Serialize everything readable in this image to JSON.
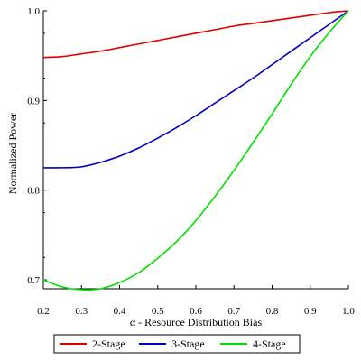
{
  "chart_data": {
    "type": "line",
    "title": "",
    "xlabel": "α - Resource Distribution Bias",
    "ylabel": "Normalized Power",
    "xlim": [
      0.2,
      1.0
    ],
    "ylim": [
      0.69,
      1.0
    ],
    "x_ticks": [
      "0.2",
      "0.3",
      "0.4",
      "0.5",
      "0.6",
      "0.7",
      "0.8",
      "0.9",
      "1.0"
    ],
    "y_ticks": [
      "0.7",
      "0.8",
      "0.9",
      "1.0"
    ],
    "grid": false,
    "legend_position": "bottom",
    "x": [
      0.2,
      0.25,
      0.3,
      0.35,
      0.4,
      0.45,
      0.5,
      0.55,
      0.6,
      0.65,
      0.7,
      0.75,
      0.8,
      0.85,
      0.9,
      0.95,
      1.0
    ],
    "series": [
      {
        "name": "2-Stage",
        "color": "#e00000",
        "values": [
          0.948,
          0.949,
          0.952,
          0.955,
          0.959,
          0.963,
          0.967,
          0.971,
          0.975,
          0.979,
          0.983,
          0.986,
          0.989,
          0.992,
          0.995,
          0.998,
          1.0
        ]
      },
      {
        "name": "3-Stage",
        "color": "#0000c0",
        "values": [
          0.825,
          0.825,
          0.826,
          0.831,
          0.838,
          0.847,
          0.858,
          0.87,
          0.883,
          0.897,
          0.911,
          0.925,
          0.94,
          0.955,
          0.97,
          0.985,
          1.0
        ]
      },
      {
        "name": "4-Stage",
        "color": "#00e000",
        "values": [
          0.7,
          0.692,
          0.689,
          0.69,
          0.697,
          0.708,
          0.724,
          0.743,
          0.766,
          0.793,
          0.822,
          0.853,
          0.885,
          0.918,
          0.949,
          0.976,
          1.0
        ]
      }
    ]
  }
}
